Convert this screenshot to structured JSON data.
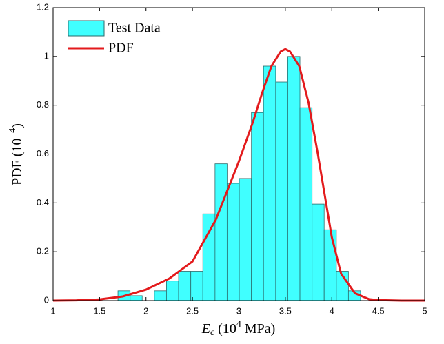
{
  "chart_data": {
    "type": "histogram",
    "xlabel": {
      "main": "E",
      "sub": "c",
      "pre": " (10",
      "sup": "4",
      "post": " MPa)"
    },
    "ylabel": {
      "pre": "PDF (10",
      "sup": "−4",
      "post": ")"
    },
    "bins": [
      1.698,
      1.829,
      1.959,
      2.09,
      2.22,
      2.351,
      2.482,
      2.612,
      2.743,
      2.873,
      3.004,
      3.135,
      3.265,
      3.396,
      3.526,
      3.657,
      3.788,
      3.918,
      4.049,
      4.179,
      4.31
    ],
    "series": [
      {
        "name": "Test Data",
        "color": "#40ffff",
        "values": [
          0.04,
          0.02,
          0,
          0.04,
          0.08,
          0.12,
          0.12,
          0.355,
          0.56,
          0.48,
          0.5,
          0.77,
          0.96,
          0.895,
          1.0,
          0.79,
          0.395,
          0.29,
          0.12,
          0.04
        ]
      },
      {
        "name": "PDF",
        "type": "line",
        "color": "#e31a1c",
        "x": [
          1,
          1.25,
          1.5,
          1.75,
          2,
          2.25,
          2.5,
          2.75,
          3,
          3.15,
          3.25,
          3.35,
          3.45,
          3.5,
          3.55,
          3.65,
          3.75,
          3.85,
          4,
          4.1,
          4.25,
          4.4,
          4.5,
          4.75,
          5
        ],
        "values": [
          0,
          0.001,
          0.005,
          0.017,
          0.045,
          0.09,
          0.16,
          0.33,
          0.57,
          0.73,
          0.85,
          0.96,
          1.02,
          1.03,
          1.02,
          0.96,
          0.81,
          0.6,
          0.26,
          0.11,
          0.03,
          0.006,
          0.002,
          0,
          0
        ]
      }
    ],
    "xlim": [
      1,
      5
    ],
    "xticks": [
      1,
      1.5,
      2,
      2.5,
      3,
      3.5,
      4,
      4.5,
      5
    ],
    "ylim": [
      0,
      1.2
    ],
    "yticks": [
      0,
      0.2,
      0.4,
      0.6,
      0.8,
      1,
      1.2
    ],
    "legend": "northwest"
  }
}
